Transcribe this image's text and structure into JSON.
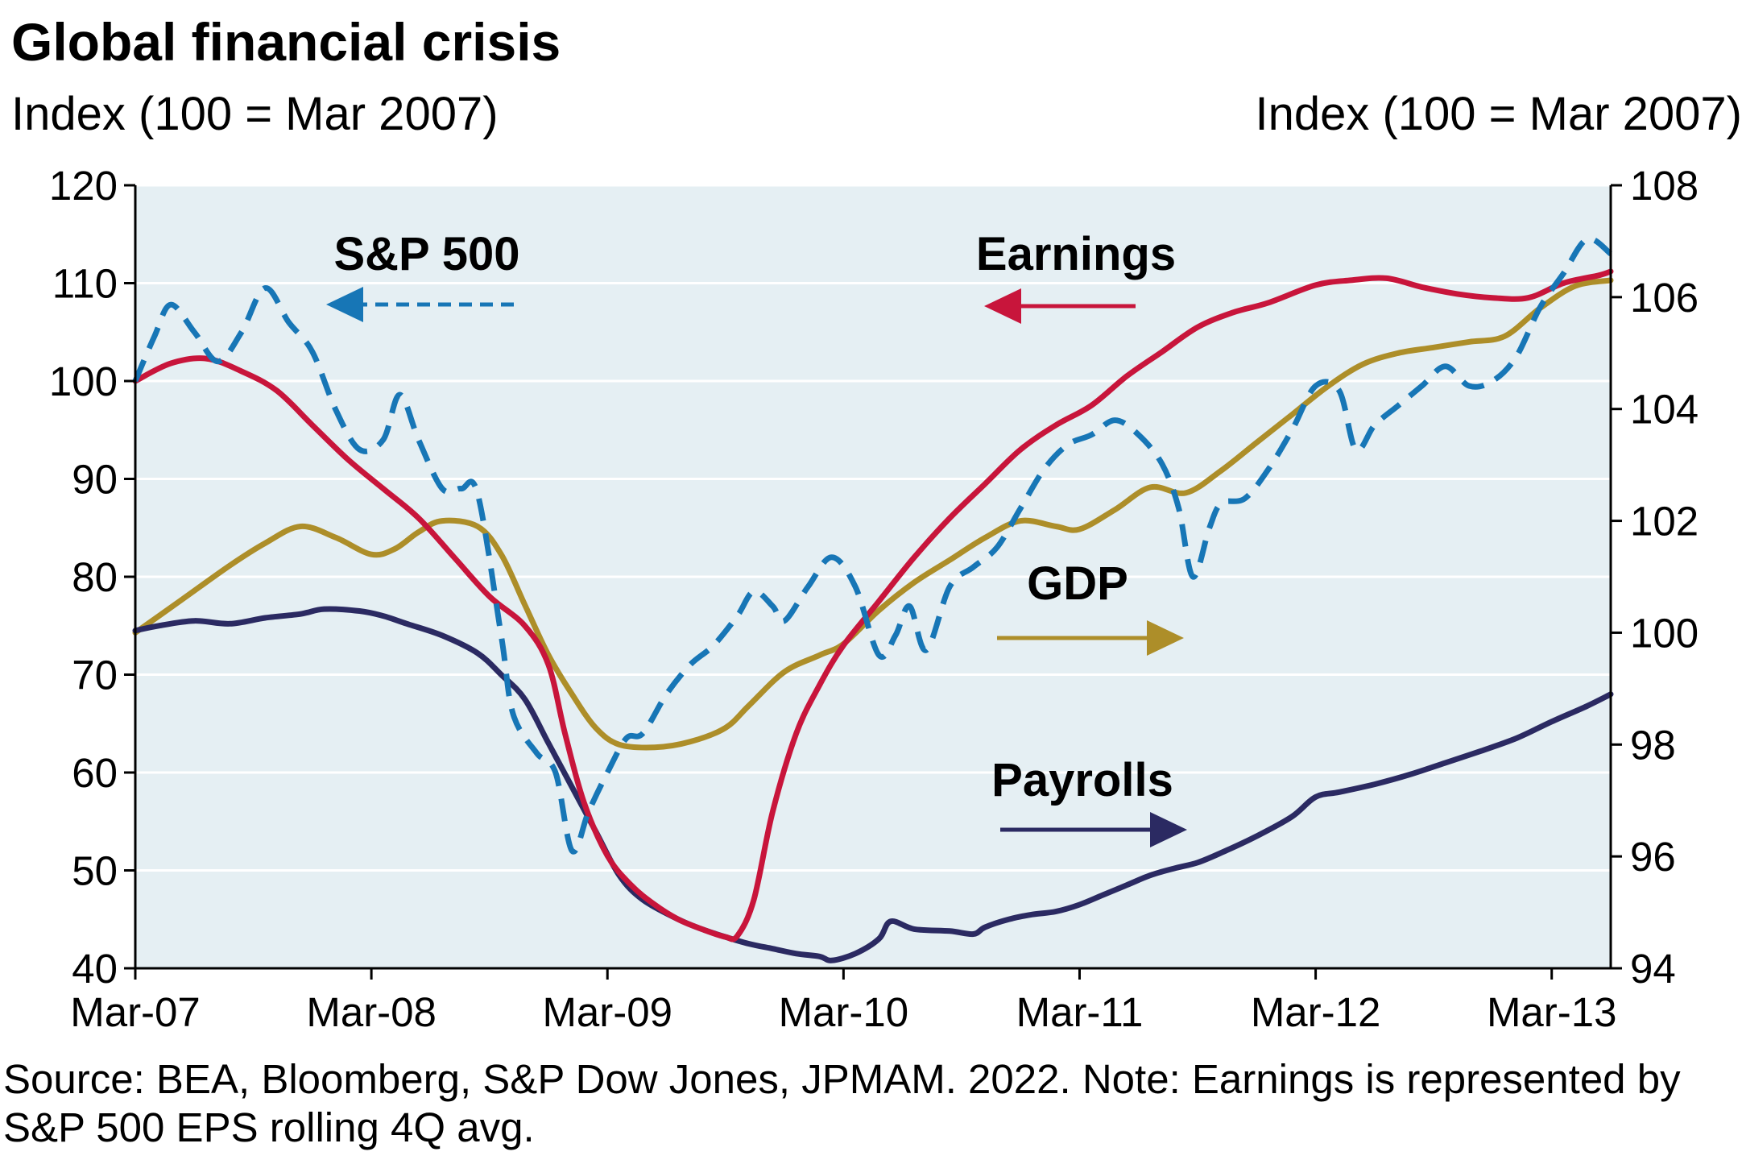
{
  "chart_data": {
    "type": "line",
    "title": "Global financial crisis",
    "ylabel_left": "Index (100 = Mar 2007)",
    "ylabel_right": "Index (100 = Mar 2007)",
    "x_ticks": [
      "Mar-07",
      "Mar-08",
      "Mar-09",
      "Mar-10",
      "Mar-11",
      "Mar-12",
      "Mar-13"
    ],
    "ylim_left": [
      40,
      120
    ],
    "yticks_left": [
      40,
      50,
      60,
      70,
      80,
      90,
      100,
      110,
      120
    ],
    "ylim_right": [
      94,
      108
    ],
    "yticks_right": [
      94,
      96,
      98,
      100,
      102,
      104,
      106,
      108
    ],
    "grid": "horizontal",
    "plot_background": "#e5eff3",
    "series": [
      {
        "name": "S&P 500",
        "axis": "left",
        "color": "#1776b6",
        "style": "dashed",
        "arrow": "left",
        "points": [
          [
            0,
            100
          ],
          [
            0.08,
            104.5
          ],
          [
            0.15,
            107.8
          ],
          [
            0.25,
            105
          ],
          [
            0.35,
            102
          ],
          [
            0.45,
            105
          ],
          [
            0.55,
            109.5
          ],
          [
            0.65,
            106
          ],
          [
            0.75,
            103
          ],
          [
            0.85,
            97
          ],
          [
            0.95,
            93
          ],
          [
            1.05,
            94
          ],
          [
            1.12,
            98.6
          ],
          [
            1.2,
            94
          ],
          [
            1.3,
            89
          ],
          [
            1.38,
            89
          ],
          [
            1.45,
            88.5
          ],
          [
            1.55,
            74
          ],
          [
            1.6,
            66
          ],
          [
            1.7,
            62
          ],
          [
            1.78,
            60
          ],
          [
            1.85,
            52
          ],
          [
            1.92,
            56
          ],
          [
            2.0,
            60
          ],
          [
            2.08,
            63.5
          ],
          [
            2.15,
            64
          ],
          [
            2.25,
            68
          ],
          [
            2.35,
            71
          ],
          [
            2.45,
            73
          ],
          [
            2.55,
            76
          ],
          [
            2.62,
            78.5
          ],
          [
            2.7,
            77
          ],
          [
            2.75,
            75.5
          ],
          [
            2.85,
            79
          ],
          [
            2.95,
            82
          ],
          [
            3.05,
            79
          ],
          [
            3.15,
            72
          ],
          [
            3.22,
            74
          ],
          [
            3.28,
            77
          ],
          [
            3.35,
            72.5
          ],
          [
            3.45,
            79
          ],
          [
            3.55,
            81
          ],
          [
            3.65,
            83
          ],
          [
            3.75,
            87
          ],
          [
            3.85,
            91
          ],
          [
            3.95,
            93.5
          ],
          [
            4.05,
            94.5
          ],
          [
            4.15,
            96
          ],
          [
            4.25,
            94.5
          ],
          [
            4.35,
            91.5
          ],
          [
            4.42,
            87
          ],
          [
            4.48,
            80
          ],
          [
            4.55,
            85
          ],
          [
            4.6,
            87.5
          ],
          [
            4.7,
            88
          ],
          [
            4.8,
            91
          ],
          [
            4.9,
            95
          ],
          [
            5.0,
            99.5
          ],
          [
            5.1,
            99
          ],
          [
            5.17,
            93
          ],
          [
            5.25,
            95.5
          ],
          [
            5.35,
            97.5
          ],
          [
            5.45,
            99.5
          ],
          [
            5.55,
            101.5
          ],
          [
            5.65,
            99.5
          ],
          [
            5.75,
            100
          ],
          [
            5.85,
            102.5
          ],
          [
            5.95,
            107.5
          ],
          [
            6.05,
            111
          ],
          [
            6.15,
            114.5
          ],
          [
            6.25,
            113
          ]
        ]
      },
      {
        "name": "Earnings",
        "axis": "left",
        "color": "#c8153b",
        "style": "solid",
        "arrow": "left",
        "points": [
          [
            0,
            100
          ],
          [
            0.15,
            101.8
          ],
          [
            0.3,
            102.3
          ],
          [
            0.45,
            101
          ],
          [
            0.6,
            99
          ],
          [
            0.75,
            95.5
          ],
          [
            0.9,
            92
          ],
          [
            1.05,
            89
          ],
          [
            1.2,
            86
          ],
          [
            1.35,
            82
          ],
          [
            1.5,
            78
          ],
          [
            1.65,
            75
          ],
          [
            1.75,
            71
          ],
          [
            1.82,
            64
          ],
          [
            1.9,
            57
          ],
          [
            2.0,
            51.5
          ],
          [
            2.1,
            48.5
          ],
          [
            2.2,
            46.5
          ],
          [
            2.3,
            45
          ],
          [
            2.4,
            44
          ],
          [
            2.5,
            43.2
          ],
          [
            2.55,
            43.3
          ],
          [
            2.62,
            47
          ],
          [
            2.7,
            56
          ],
          [
            2.8,
            64
          ],
          [
            2.9,
            69
          ],
          [
            3.0,
            73
          ],
          [
            3.15,
            77.5
          ],
          [
            3.3,
            82
          ],
          [
            3.45,
            86
          ],
          [
            3.6,
            89.5
          ],
          [
            3.75,
            93
          ],
          [
            3.9,
            95.5
          ],
          [
            4.05,
            97.5
          ],
          [
            4.2,
            100.5
          ],
          [
            4.35,
            103
          ],
          [
            4.5,
            105.5
          ],
          [
            4.65,
            107
          ],
          [
            4.8,
            108
          ],
          [
            5.0,
            109.8
          ],
          [
            5.15,
            110.3
          ],
          [
            5.3,
            110.5
          ],
          [
            5.45,
            109.6
          ],
          [
            5.6,
            108.9
          ],
          [
            5.75,
            108.5
          ],
          [
            5.9,
            108.5
          ],
          [
            6.05,
            110
          ],
          [
            6.2,
            110.8
          ],
          [
            6.25,
            111.2
          ]
        ]
      },
      {
        "name": "GDP",
        "axis": "right",
        "color": "#ad8e29",
        "style": "solid",
        "arrow": "right",
        "points": [
          [
            0,
            100
          ],
          [
            0.2,
            100.6
          ],
          [
            0.4,
            101.2
          ],
          [
            0.55,
            101.6
          ],
          [
            0.7,
            101.9
          ],
          [
            0.85,
            101.7
          ],
          [
            1.0,
            101.4
          ],
          [
            1.1,
            101.5
          ],
          [
            1.2,
            101.8
          ],
          [
            1.3,
            102
          ],
          [
            1.45,
            101.9
          ],
          [
            1.55,
            101.4
          ],
          [
            1.65,
            100.5
          ],
          [
            1.75,
            99.6
          ],
          [
            1.85,
            98.9
          ],
          [
            1.95,
            98.3
          ],
          [
            2.05,
            98
          ],
          [
            2.2,
            97.95
          ],
          [
            2.35,
            98.05
          ],
          [
            2.5,
            98.3
          ],
          [
            2.6,
            98.7
          ],
          [
            2.75,
            99.3
          ],
          [
            2.9,
            99.6
          ],
          [
            3.0,
            99.8
          ],
          [
            3.15,
            100.4
          ],
          [
            3.3,
            100.9
          ],
          [
            3.45,
            101.3
          ],
          [
            3.6,
            101.7
          ],
          [
            3.75,
            102
          ],
          [
            3.9,
            101.9
          ],
          [
            4.0,
            101.85
          ],
          [
            4.15,
            102.2
          ],
          [
            4.3,
            102.6
          ],
          [
            4.45,
            102.5
          ],
          [
            4.6,
            102.9
          ],
          [
            4.75,
            103.4
          ],
          [
            4.9,
            103.9
          ],
          [
            5.05,
            104.4
          ],
          [
            5.2,
            104.8
          ],
          [
            5.35,
            105
          ],
          [
            5.5,
            105.1
          ],
          [
            5.65,
            105.2
          ],
          [
            5.8,
            105.3
          ],
          [
            5.95,
            105.8
          ],
          [
            6.1,
            106.2
          ],
          [
            6.25,
            106.3
          ]
        ]
      },
      {
        "name": "Payrolls",
        "axis": "left",
        "color": "#2b2a62",
        "style": "solid",
        "arrow": "right",
        "points": [
          [
            0,
            74.5
          ],
          [
            0.1,
            75
          ],
          [
            0.25,
            75.5
          ],
          [
            0.4,
            75.2
          ],
          [
            0.55,
            75.8
          ],
          [
            0.7,
            76.2
          ],
          [
            0.8,
            76.7
          ],
          [
            0.95,
            76.5
          ],
          [
            1.05,
            76
          ],
          [
            1.15,
            75.2
          ],
          [
            1.3,
            74
          ],
          [
            1.45,
            72.2
          ],
          [
            1.55,
            70
          ],
          [
            1.65,
            67.5
          ],
          [
            1.75,
            63
          ],
          [
            1.85,
            58.5
          ],
          [
            1.95,
            54
          ],
          [
            2.05,
            49.5
          ],
          [
            2.15,
            47
          ],
          [
            2.3,
            45
          ],
          [
            2.4,
            44
          ],
          [
            2.5,
            43.2
          ],
          [
            2.6,
            42.5
          ],
          [
            2.7,
            42
          ],
          [
            2.8,
            41.5
          ],
          [
            2.9,
            41.2
          ],
          [
            2.95,
            40.8
          ],
          [
            3.05,
            41.5
          ],
          [
            3.15,
            43
          ],
          [
            3.2,
            44.8
          ],
          [
            3.3,
            44
          ],
          [
            3.45,
            43.8
          ],
          [
            3.55,
            43.5
          ],
          [
            3.6,
            44.2
          ],
          [
            3.7,
            45
          ],
          [
            3.8,
            45.5
          ],
          [
            3.9,
            45.8
          ],
          [
            4.0,
            46.5
          ],
          [
            4.1,
            47.5
          ],
          [
            4.2,
            48.5
          ],
          [
            4.3,
            49.5
          ],
          [
            4.4,
            50.2
          ],
          [
            4.5,
            50.8
          ],
          [
            4.6,
            51.8
          ],
          [
            4.75,
            53.5
          ],
          [
            4.9,
            55.5
          ],
          [
            5.0,
            57.5
          ],
          [
            5.1,
            58
          ],
          [
            5.25,
            58.8
          ],
          [
            5.4,
            59.8
          ],
          [
            5.55,
            61
          ],
          [
            5.7,
            62.2
          ],
          [
            5.85,
            63.5
          ],
          [
            6.0,
            65.2
          ],
          [
            6.15,
            66.8
          ],
          [
            6.25,
            68
          ]
        ]
      }
    ]
  },
  "source_note": "Source: BEA, Bloomberg, S&P Dow Jones, JPMAM. 2022. Note: Earnings is represented by S&P 500 EPS rolling 4Q avg."
}
